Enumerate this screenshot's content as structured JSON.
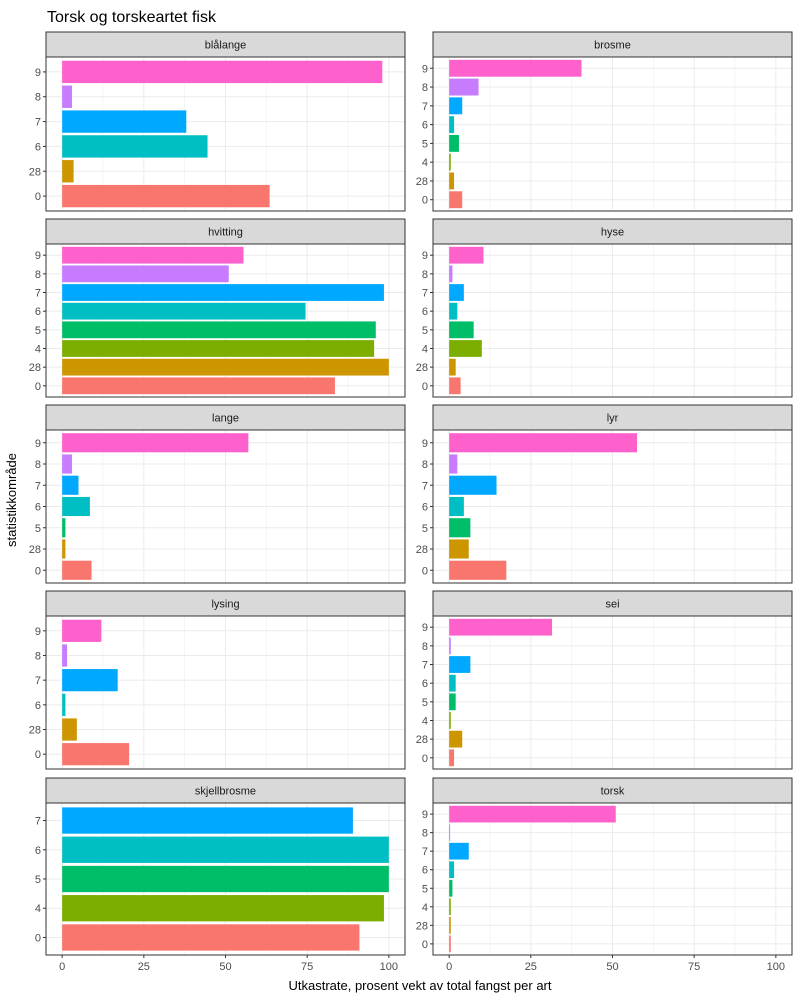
{
  "chart_data": {
    "type": "bar",
    "orientation": "horizontal",
    "title": "Torsk og torskeartet fisk",
    "xlabel": "Utkastrate, prosent vekt av total fangst per art",
    "ylabel": "statistikkområde",
    "xlim": [
      0,
      100
    ],
    "x_ticks": [
      "0",
      "25",
      "50",
      "75",
      "100"
    ],
    "grid": true,
    "legend": "none",
    "category_colors": {
      "0": "#F8766D",
      "28": "#CD9600",
      "4": "#7CAE00",
      "5": "#00BE67",
      "6": "#00BFC4",
      "7": "#00A9FF",
      "8": "#C77CFF",
      "9": "#FF61CC"
    },
    "panels": [
      {
        "name": "blålange",
        "categories": [
          "9",
          "8",
          "7",
          "6",
          "28",
          "0"
        ],
        "values": [
          98,
          3,
          38,
          44.5,
          3.5,
          63.5
        ]
      },
      {
        "name": "brosme",
        "categories": [
          "9",
          "8",
          "7",
          "6",
          "5",
          "4",
          "28",
          "0"
        ],
        "values": [
          40.5,
          9,
          4,
          1.5,
          3,
          0.5,
          1.5,
          4
        ]
      },
      {
        "name": "hvitting",
        "categories": [
          "9",
          "8",
          "7",
          "6",
          "5",
          "4",
          "28",
          "0"
        ],
        "values": [
          55.5,
          51,
          98.5,
          74.5,
          96,
          95.5,
          100,
          83.5
        ]
      },
      {
        "name": "hyse",
        "categories": [
          "9",
          "8",
          "7",
          "6",
          "5",
          "4",
          "28",
          "0"
        ],
        "values": [
          10.5,
          1,
          4.5,
          2.5,
          7.5,
          10,
          2,
          3.5
        ]
      },
      {
        "name": "lange",
        "categories": [
          "9",
          "8",
          "7",
          "6",
          "5",
          "28",
          "0"
        ],
        "values": [
          57,
          3,
          5,
          8.5,
          1,
          1,
          9
        ]
      },
      {
        "name": "lyr",
        "categories": [
          "9",
          "8",
          "7",
          "6",
          "5",
          "28",
          "0"
        ],
        "values": [
          57.5,
          2.5,
          14.5,
          4.5,
          6.5,
          6,
          17.5
        ]
      },
      {
        "name": "lysing",
        "categories": [
          "9",
          "8",
          "7",
          "6",
          "28",
          "0"
        ],
        "values": [
          12,
          1.5,
          17,
          1,
          4.5,
          20.5
        ]
      },
      {
        "name": "sei",
        "categories": [
          "9",
          "8",
          "7",
          "6",
          "5",
          "4",
          "28",
          "0"
        ],
        "values": [
          31.5,
          0.5,
          6.5,
          2,
          2,
          0.5,
          4,
          1.5
        ]
      },
      {
        "name": "skjellbrosme",
        "categories": [
          "7",
          "6",
          "5",
          "4",
          "0"
        ],
        "values": [
          89,
          100,
          100,
          98.5,
          91
        ]
      },
      {
        "name": "torsk",
        "categories": [
          "9",
          "8",
          "7",
          "6",
          "5",
          "4",
          "28",
          "0"
        ],
        "values": [
          51,
          0.3,
          6,
          1.5,
          1,
          0.5,
          0.5,
          0.5
        ]
      }
    ]
  }
}
